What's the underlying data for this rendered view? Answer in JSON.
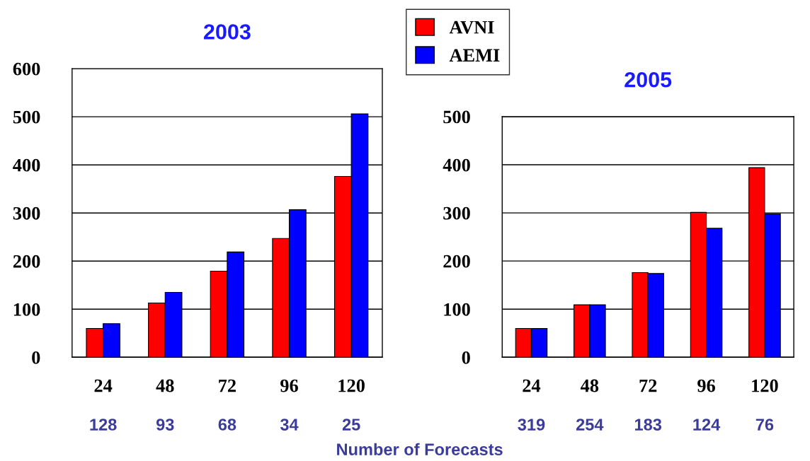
{
  "chart_data": [
    {
      "type": "bar",
      "title": "2003",
      "xlabel": "Number of Forecasts",
      "categories": [
        "24",
        "48",
        "72",
        "96",
        "120"
      ],
      "series": [
        {
          "name": "AVNI",
          "color": "#ff0000",
          "values": [
            60,
            113,
            179,
            247,
            376
          ]
        },
        {
          "name": "AEMI",
          "color": "#0000ff",
          "values": [
            70,
            135,
            219,
            307,
            506
          ]
        }
      ],
      "ylim": [
        0,
        600
      ],
      "yticks": [
        0,
        100,
        200,
        300,
        400,
        500,
        600
      ],
      "grid": "y",
      "legend": "top right",
      "annotations": [
        "128",
        "93",
        "68",
        "34",
        "25"
      ]
    },
    {
      "type": "bar",
      "title": "2005",
      "categories": [
        "24",
        "48",
        "72",
        "96",
        "120"
      ],
      "series": [
        {
          "color": "#ff0000",
          "values": [
            60,
            109,
            176,
            301,
            394
          ]
        },
        {
          "color": "#0000ff",
          "values": [
            60,
            109,
            174,
            268,
            298
          ]
        }
      ],
      "ylim": [
        0,
        500
      ],
      "yticks": [
        0,
        100,
        200,
        300,
        400,
        500
      ],
      "grid": "y",
      "annotations": [
        "319",
        "254",
        "183",
        "124",
        "76"
      ]
    }
  ]
}
